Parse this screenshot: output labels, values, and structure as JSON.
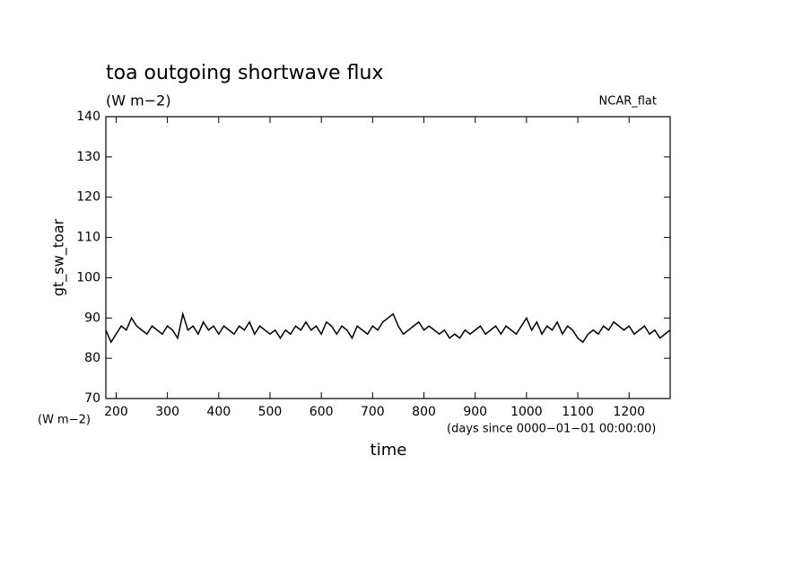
{
  "chart_data": {
    "type": "line",
    "title": "toa outgoing shortwave flux",
    "subtitle": "(W m−2)",
    "annotation": "NCAR_flat",
    "y_label": "gt_sw_toar",
    "y_units": "(W m−2)",
    "x_label": "time",
    "x_units": "(days since 0000−01−01 00:00:00)",
    "xlim": [
      180,
      1280
    ],
    "ylim": [
      70,
      140
    ],
    "xticks": [
      200,
      300,
      400,
      500,
      600,
      700,
      800,
      900,
      1000,
      1100,
      1200
    ],
    "yticks": [
      70,
      80,
      90,
      100,
      110,
      120,
      130,
      140
    ],
    "x": [
      180,
      190,
      200,
      210,
      220,
      230,
      240,
      250,
      260,
      270,
      280,
      290,
      300,
      310,
      320,
      330,
      340,
      350,
      360,
      370,
      380,
      390,
      400,
      410,
      420,
      430,
      440,
      450,
      460,
      470,
      480,
      490,
      500,
      510,
      520,
      530,
      540,
      550,
      560,
      570,
      580,
      590,
      600,
      610,
      620,
      630,
      640,
      650,
      660,
      670,
      680,
      690,
      700,
      710,
      720,
      730,
      740,
      750,
      760,
      770,
      780,
      790,
      800,
      810,
      820,
      830,
      840,
      850,
      860,
      870,
      880,
      890,
      900,
      910,
      920,
      930,
      940,
      950,
      960,
      970,
      980,
      990,
      1000,
      1010,
      1020,
      1030,
      1040,
      1050,
      1060,
      1070,
      1080,
      1090,
      1100,
      1110,
      1120,
      1130,
      1140,
      1150,
      1160,
      1170,
      1180,
      1190,
      1200,
      1210,
      1220,
      1230,
      1240,
      1250,
      1260,
      1270,
      1280
    ],
    "series": [
      {
        "color": "#000000",
        "values": [
          87,
          84,
          86,
          88,
          87,
          90,
          88,
          87,
          86,
          88,
          87,
          86,
          88,
          87,
          85,
          91,
          87,
          88,
          86,
          89,
          87,
          88,
          86,
          88,
          87,
          86,
          88,
          87,
          89,
          86,
          88,
          87,
          86,
          87,
          85,
          87,
          86,
          88,
          87,
          89,
          87,
          88,
          86,
          89,
          88,
          86,
          88,
          87,
          85,
          88,
          87,
          86,
          88,
          87,
          89,
          90,
          91,
          88,
          86,
          87,
          88,
          89,
          87,
          88,
          87,
          86,
          87,
          85,
          86,
          85,
          87,
          86,
          87,
          88,
          86,
          87,
          88,
          86,
          88,
          87,
          86,
          88,
          90,
          87,
          89,
          86,
          88,
          87,
          89,
          86,
          88,
          87,
          85,
          84,
          86,
          87,
          86,
          88,
          87,
          89,
          88,
          87,
          88,
          86,
          87,
          88,
          86,
          87,
          85,
          86,
          87
        ]
      }
    ]
  }
}
